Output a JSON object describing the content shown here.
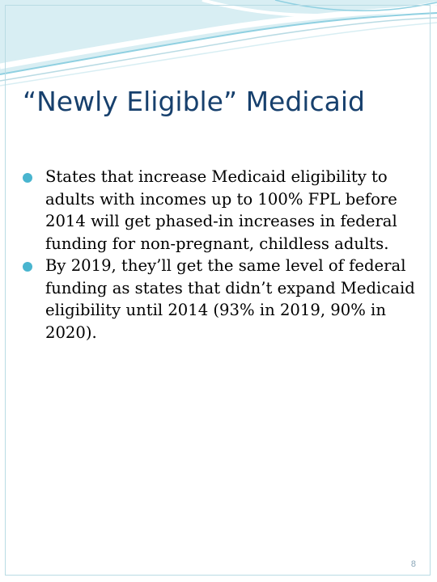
{
  "slide": {
    "title": "“Newly Eligible” Medicaid",
    "bullets": [
      "States that increase Medicaid eligibility to adults with incomes up to 100% FPL before 2014 will get phased-in increases in federal funding for non-pregnant, childless adults.",
      "By 2019, they’ll get the same level of federal funding as states that didn’t expand Medicaid eligibility until 2014 (93% in 2019, 90% in 2020)."
    ],
    "page_number": "8"
  },
  "colors": {
    "title": "#17406d",
    "bullet": "#49b5cf",
    "wave_light": "#d8eef3",
    "wave_mid": "#8fd0e1",
    "wave_dark": "#49b5cf"
  }
}
